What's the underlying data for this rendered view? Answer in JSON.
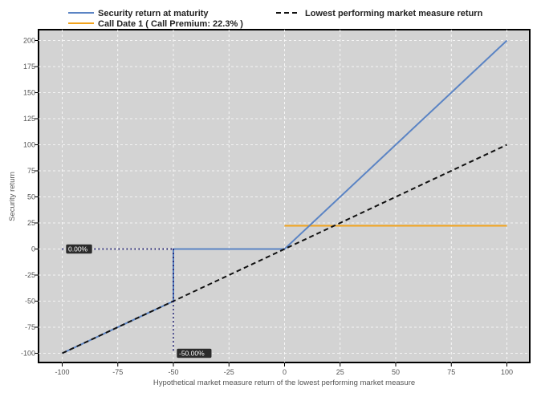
{
  "chart_data": {
    "type": "line",
    "xlabel": "Hypothetical market measure return of the lowest performing market measure",
    "ylabel": "Security return",
    "xlim": [
      -110,
      110
    ],
    "ylim": [
      -110,
      210
    ],
    "x_ticks": [
      -100,
      -75,
      -50,
      -25,
      0,
      25,
      50,
      75,
      100
    ],
    "y_ticks": [
      200,
      175,
      150,
      125,
      100,
      75,
      50,
      25,
      0,
      -25,
      -50,
      -75,
      -100
    ],
    "grid": true,
    "legend_position": "top",
    "series": [
      {
        "name": "Security return at maturity",
        "color": "#5b84c4",
        "style": "solid",
        "points": [
          [
            -100,
            -100
          ],
          [
            -50,
            -50
          ],
          [
            -50,
            0
          ],
          [
            0,
            0
          ],
          [
            100,
            200
          ]
        ]
      },
      {
        "name": "Call Date 1 ( Call Premium: 22.3% )",
        "color": "#f2a31c",
        "style": "solid",
        "points": [
          [
            0,
            22.3
          ],
          [
            100,
            22.3
          ]
        ]
      },
      {
        "name": "Lowest performing market measure return",
        "color": "#111111",
        "style": "dashed",
        "points": [
          [
            -100,
            -100
          ],
          [
            100,
            100
          ]
        ]
      }
    ],
    "annotations": [
      {
        "label": "0.00%",
        "x_from": -100,
        "x_to": -50,
        "y": 0,
        "orientation": "horizontal"
      },
      {
        "label": "-50.00%",
        "x": -50,
        "y_from": 0,
        "y_to": -100,
        "orientation": "vertical"
      }
    ]
  }
}
